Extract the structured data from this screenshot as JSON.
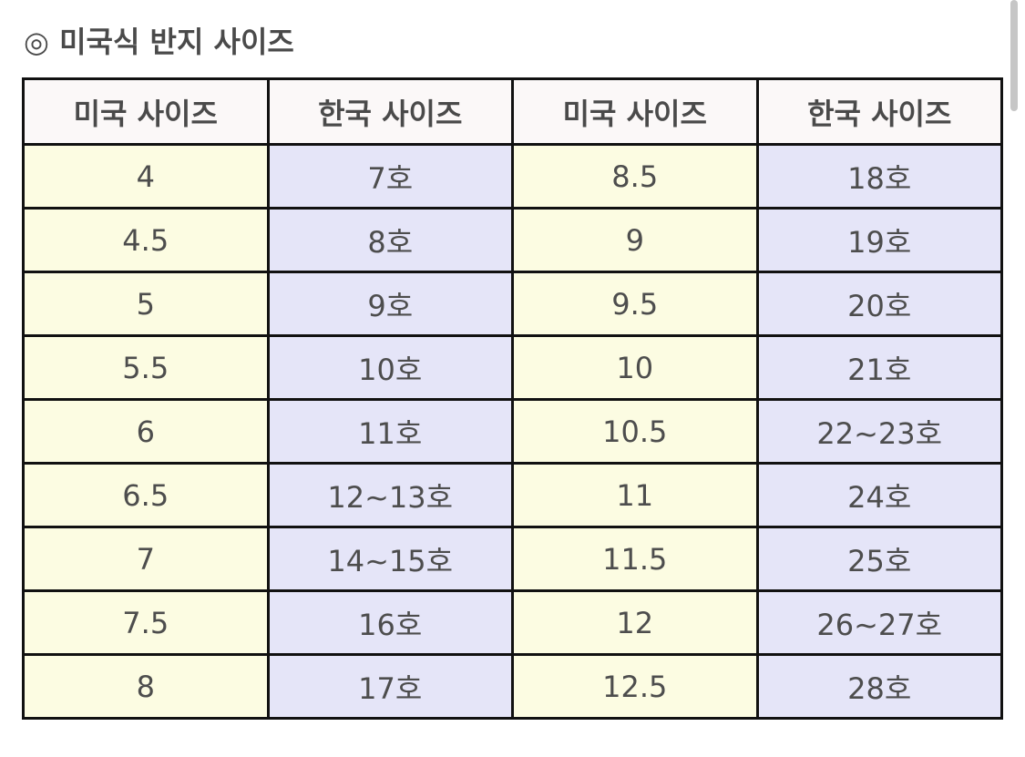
{
  "title": "◎ 미국식 반지 사이즈",
  "headers": [
    "미국 사이즈",
    "한국 사이즈",
    "미국  사이즈",
    "한국 사이즈"
  ],
  "rows": [
    [
      "4",
      "7호",
      "8.5",
      "18호"
    ],
    [
      "4.5",
      "8호",
      "9",
      "19호"
    ],
    [
      "5",
      "9호",
      "9.5",
      "20호"
    ],
    [
      "5.5",
      "10호",
      "10",
      "21호"
    ],
    [
      "6",
      "11호",
      "10.5",
      "22~23호"
    ],
    [
      "6.5",
      "12~13호",
      "11",
      "24호"
    ],
    [
      "7",
      "14~15호",
      "11.5",
      "25호"
    ],
    [
      "7.5",
      "16호",
      "12",
      "26~27호"
    ],
    [
      "8",
      "17호",
      "12.5",
      "28호"
    ]
  ],
  "colors": {
    "us_cell": "#fcfce2",
    "kr_cell": "#e5e5f8",
    "header": "#fbf8f8",
    "border": "#111111"
  }
}
